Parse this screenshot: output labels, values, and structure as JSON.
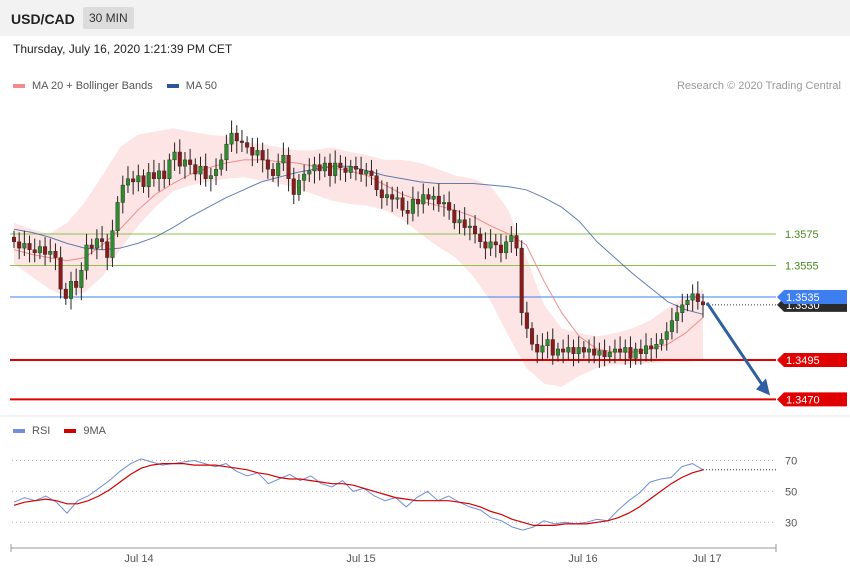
{
  "header": {
    "symbol": "USD/CAD",
    "timeframe": "30 MIN",
    "datetime": "Thursday, July 16, 2020 1:21:39 PM CET"
  },
  "legend": {
    "ma20": {
      "label": "MA 20 + Bollinger Bands",
      "color": "#f28b8b"
    },
    "ma50": {
      "label": "MA 50",
      "color": "#2f5597"
    }
  },
  "rsi_legend": {
    "rsi": {
      "label": "RSI",
      "color": "#6f8fd8"
    },
    "ma9": {
      "label": "9MA",
      "color": "#d40000"
    }
  },
  "credit": "Research © 2020 Trading Central",
  "chart_data": [
    {
      "type": "candlestick",
      "title": "USD/CAD",
      "timeframe": "30 MIN",
      "x_ticks": [
        "Jul 14",
        "Jul 15",
        "Jul 16",
        "Jul 17"
      ],
      "ylim": [
        1.3462,
        1.366
      ],
      "current_price": "1.3530",
      "levels": [
        {
          "value": 1.3575,
          "label": "1.3575",
          "kind": "fib",
          "color": "#8bc34a"
        },
        {
          "value": 1.3555,
          "label": "1.3555",
          "kind": "fib",
          "color": "#8bc34a"
        },
        {
          "value": 1.3535,
          "label": "1.3535",
          "kind": "pivot",
          "color": "#3d7ff0"
        },
        {
          "value": 1.3495,
          "label": "1.3495",
          "kind": "support",
          "color": "#e00000"
        },
        {
          "value": 1.347,
          "label": "1.3470",
          "kind": "support",
          "color": "#e00000"
        }
      ],
      "close_series": [
        1.357,
        1.3566,
        1.3569,
        1.3565,
        1.3563,
        1.3567,
        1.3562,
        1.3564,
        1.356,
        1.354,
        1.3534,
        1.3545,
        1.3541,
        1.3552,
        1.3568,
        1.3566,
        1.3572,
        1.357,
        1.356,
        1.3577,
        1.3595,
        1.3606,
        1.361,
        1.3608,
        1.3612,
        1.3605,
        1.3614,
        1.361,
        1.3615,
        1.361,
        1.3622,
        1.3627,
        1.3618,
        1.3622,
        1.3619,
        1.3613,
        1.3618,
        1.361,
        1.3612,
        1.3616,
        1.3622,
        1.3632,
        1.3639,
        1.3634,
        1.3633,
        1.363,
        1.3625,
        1.3628,
        1.3622,
        1.3616,
        1.3612,
        1.362,
        1.3625,
        1.361,
        1.36,
        1.3609,
        1.3613,
        1.3615,
        1.3619,
        1.3615,
        1.362,
        1.3612,
        1.362,
        1.3617,
        1.3614,
        1.3618,
        1.3616,
        1.3613,
        1.3615,
        1.3612,
        1.3603,
        1.3598,
        1.36,
        1.3597,
        1.3598,
        1.359,
        1.3588,
        1.3597,
        1.3594,
        1.36,
        1.3597,
        1.3599,
        1.3594,
        1.3595,
        1.359,
        1.3582,
        1.3584,
        1.3579,
        1.358,
        1.3575,
        1.357,
        1.3566,
        1.357,
        1.3568,
        1.3563,
        1.357,
        1.3574,
        1.3566,
        1.3525,
        1.3515,
        1.3505,
        1.35,
        1.3504,
        1.3508,
        1.3498,
        1.3502,
        1.35,
        1.3503,
        1.3499,
        1.3503,
        1.35,
        1.3502,
        1.3498,
        1.3501,
        1.3497,
        1.35,
        1.3502,
        1.35,
        1.3503,
        1.3496,
        1.3502,
        1.3499,
        1.3504,
        1.3502,
        1.3505,
        1.3508,
        1.3513,
        1.352,
        1.3525,
        1.353,
        1.3533,
        1.3537,
        1.3532,
        1.353
      ],
      "ma50_series": [
        1.3578,
        1.3576,
        1.3573,
        1.3569,
        1.3566,
        1.3565,
        1.3566,
        1.3569,
        1.3573,
        1.3579,
        1.3586,
        1.3592,
        1.3598,
        1.3603,
        1.3608,
        1.3611,
        1.3614,
        1.3616,
        1.3618,
        1.3618,
        1.3615,
        1.3612,
        1.361,
        1.3608,
        1.3607,
        1.3607,
        1.3607,
        1.3606,
        1.3605,
        1.3603,
        1.3598,
        1.3592,
        1.3583,
        1.357,
        1.356,
        1.355,
        1.3541,
        1.3532,
        1.3527,
        1.3524
      ],
      "ma20_series": [
        1.3565,
        1.3562,
        1.356,
        1.3558,
        1.356,
        1.3568,
        1.3578,
        1.359,
        1.36,
        1.3607,
        1.3613,
        1.3617,
        1.362,
        1.3622,
        1.3622,
        1.3621,
        1.362,
        1.3618,
        1.3617,
        1.3615,
        1.3612,
        1.3606,
        1.36,
        1.3596,
        1.3593,
        1.359,
        1.3586,
        1.358,
        1.3575,
        1.3568,
        1.3545,
        1.3525,
        1.351,
        1.3502,
        1.35,
        1.35,
        1.3502,
        1.3505,
        1.3512,
        1.3522
      ],
      "bb_upper": [
        1.3582,
        1.3578,
        1.3575,
        1.3582,
        1.3595,
        1.3612,
        1.363,
        1.3638,
        1.364,
        1.3642,
        1.364,
        1.3638,
        1.3637,
        1.3633,
        1.3632,
        1.363,
        1.3628,
        1.3628,
        1.363,
        1.3627,
        1.3625,
        1.3622,
        1.3622,
        1.362,
        1.3616,
        1.3612,
        1.361,
        1.3605,
        1.359,
        1.356,
        1.353,
        1.3515,
        1.3512,
        1.351,
        1.3512,
        1.3515,
        1.352,
        1.3528,
        1.3535,
        1.354
      ],
      "bb_lower": [
        1.3556,
        1.3548,
        1.354,
        1.3535,
        1.3538,
        1.3548,
        1.3565,
        1.358,
        1.3592,
        1.3602,
        1.3606,
        1.3608,
        1.361,
        1.3611,
        1.3609,
        1.3607,
        1.3604,
        1.36,
        1.3596,
        1.3594,
        1.3593,
        1.359,
        1.3584,
        1.3575,
        1.3567,
        1.356,
        1.3548,
        1.3532,
        1.351,
        1.349,
        1.348,
        1.3478,
        1.3485,
        1.349,
        1.3492,
        1.3492,
        1.3493,
        1.3494,
        1.3494,
        1.3495
      ]
    },
    {
      "type": "line",
      "title": "RSI",
      "y_ticks": [
        "70",
        "50",
        "30"
      ],
      "ylim": [
        16,
        80
      ],
      "series": [
        {
          "name": "RSI",
          "values": [
            43,
            46,
            44,
            47,
            43,
            36,
            44,
            47,
            52,
            57,
            63,
            68,
            71,
            69,
            67,
            68,
            69,
            70,
            68,
            66,
            68,
            63,
            60,
            62,
            55,
            58,
            61,
            57,
            60,
            55,
            53,
            57,
            50,
            52,
            47,
            44,
            46,
            40,
            46,
            50,
            44,
            47,
            43,
            40,
            38,
            33,
            31,
            27,
            25,
            27,
            31,
            29,
            30,
            29,
            30,
            32,
            31,
            38,
            44,
            49,
            56,
            58,
            59,
            66,
            68,
            64
          ]
        },
        {
          "name": "9MA",
          "values": [
            41,
            43,
            44,
            45,
            44,
            42,
            42,
            44,
            47,
            51,
            56,
            61,
            65,
            67,
            68,
            68,
            68,
            67,
            67,
            67,
            66,
            65,
            64,
            62,
            61,
            59,
            58,
            58,
            57,
            56,
            55,
            55,
            54,
            52,
            50,
            48,
            46,
            45,
            44,
            44,
            44,
            44,
            43,
            42,
            40,
            37,
            35,
            32,
            30,
            28,
            28,
            28,
            29,
            29,
            29,
            30,
            31,
            33,
            36,
            40,
            45,
            50,
            55,
            59,
            62,
            64
          ]
        }
      ]
    }
  ]
}
